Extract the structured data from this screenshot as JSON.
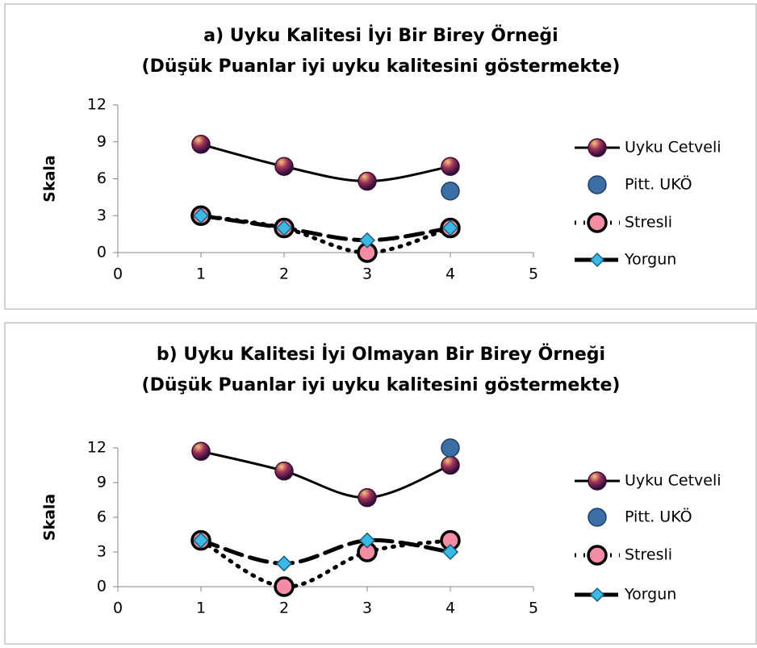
{
  "chart_data": [
    {
      "type": "line",
      "title": "a) Uyku Kalitesi İyi Bir Birey Örneği",
      "subtitle": "(Düşük Puanlar iyi uyku kalitesini göstermekte)",
      "ylabel": "Skala",
      "xlim": [
        0,
        5
      ],
      "xticks": [
        0,
        1,
        2,
        3,
        4,
        5
      ],
      "ylim": [
        0,
        12
      ],
      "yticks": [
        0,
        3,
        6,
        9,
        12
      ],
      "series": [
        {
          "name": "Uyku Cetveli",
          "color": "#5a1a4a",
          "line": "solid",
          "marker": "circle",
          "x": [
            1,
            2,
            3,
            4
          ],
          "values": [
            8.8,
            7.0,
            5.8,
            7.0
          ]
        },
        {
          "name": "Pitt. UKÖ",
          "color": "#3b6ea5",
          "line": "none",
          "marker": "circle",
          "x": [
            4
          ],
          "values": [
            5
          ]
        },
        {
          "name": "Stresli",
          "color": "#f48ca6",
          "line": "dotted",
          "marker": "circle",
          "x": [
            1,
            2,
            3,
            4
          ],
          "values": [
            3,
            2,
            0,
            2
          ]
        },
        {
          "name": "Yorgun",
          "color": "#3bb8e4",
          "line": "dashed",
          "marker": "diamond",
          "x": [
            1,
            2,
            3,
            4
          ],
          "values": [
            3,
            2,
            1,
            2
          ]
        }
      ]
    },
    {
      "type": "line",
      "title": "b) Uyku Kalitesi İyi Olmayan Bir Birey Örneği",
      "subtitle": "(Düşük Puanlar iyi uyku kalitesini göstermekte)",
      "ylabel": "Skala",
      "xlim": [
        0,
        5
      ],
      "xticks": [
        0,
        1,
        2,
        3,
        4,
        5
      ],
      "ylim": [
        0,
        12
      ],
      "yticks": [
        0,
        3,
        6,
        9,
        12
      ],
      "series": [
        {
          "name": "Uyku Cetveli",
          "color": "#5a1a4a",
          "line": "solid",
          "marker": "circle",
          "x": [
            1,
            2,
            3,
            4
          ],
          "values": [
            11.7,
            10.0,
            7.7,
            10.5
          ]
        },
        {
          "name": "Pitt. UKÖ",
          "color": "#3b6ea5",
          "line": "none",
          "marker": "circle",
          "x": [
            4
          ],
          "values": [
            12
          ]
        },
        {
          "name": "Stresli",
          "color": "#f48ca6",
          "line": "dotted",
          "marker": "circle",
          "x": [
            1,
            2,
            3,
            4
          ],
          "values": [
            4,
            0,
            3,
            4
          ]
        },
        {
          "name": "Yorgun",
          "color": "#3bb8e4",
          "line": "dashed",
          "marker": "diamond",
          "x": [
            1,
            2,
            3,
            4
          ],
          "values": [
            4,
            2,
            4,
            3
          ]
        }
      ]
    }
  ]
}
